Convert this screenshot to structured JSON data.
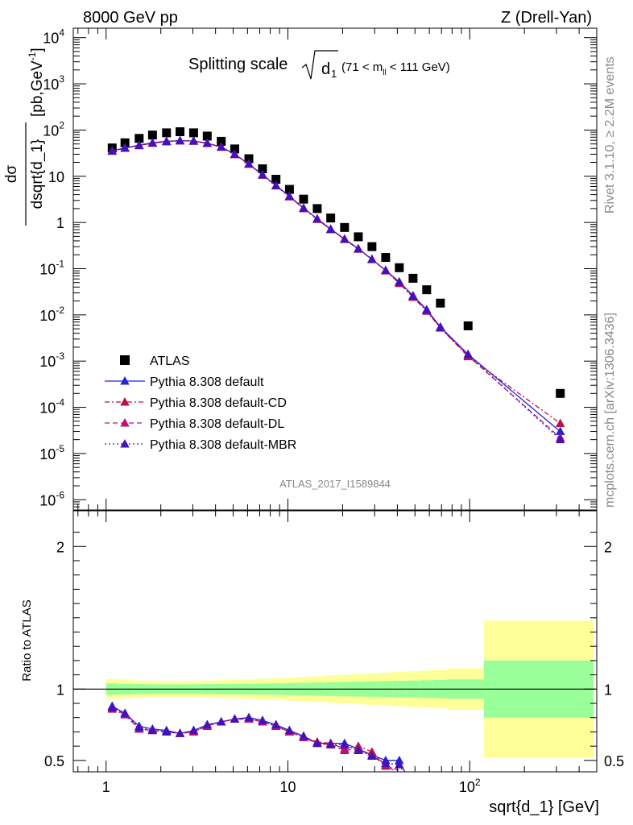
{
  "header": {
    "left": "8000 GeV pp",
    "right": "Z (Drell-Yan)"
  },
  "side_labels": {
    "rivet": "Rivet 3.1.10, ≥ 2.2M events",
    "mcplots": "mcplots.cern.ch [arXiv:1306.3436]"
  },
  "chart_data": [
    {
      "type": "scatter",
      "title": "Splitting scale",
      "title_symbol": "d",
      "title_subscript": "1",
      "title_range_prefix": "(71 < m",
      "title_range_subscript": "ll",
      "title_range_suffix": " < 111 GeV)",
      "ylabel": "dσ/dsqrt{d_1} [pb,GeV⁻¹]",
      "ylabel_num": "dσ",
      "ylabel_den": "dsqrt{d_1}",
      "ylabel_unit": "[pb,GeV",
      "ylabel_unit_sup": "-1",
      "ylabel_unit_close": "]",
      "yscale": "log",
      "xscale": "log",
      "ylim": [
        6e-07,
        16000
      ],
      "xlim": [
        0.66,
        500
      ],
      "y_tick_labels": [
        {
          "v": 1e-06,
          "base": "10",
          "exp": "-6"
        },
        {
          "v": 1e-05,
          "base": "10",
          "exp": "-5"
        },
        {
          "v": 0.0001,
          "base": "10",
          "exp": "-4"
        },
        {
          "v": 0.001,
          "base": "10",
          "exp": "-3"
        },
        {
          "v": 0.01,
          "base": "10",
          "exp": "-2"
        },
        {
          "v": 0.1,
          "base": "10",
          "exp": "-1"
        },
        {
          "v": 1,
          "base": "1",
          "exp": ""
        },
        {
          "v": 10,
          "base": "10",
          "exp": ""
        },
        {
          "v": 100,
          "base": "10",
          "exp": "2"
        },
        {
          "v": 1000,
          "base": "10",
          "exp": "3"
        },
        {
          "v": 10000,
          "base": "10",
          "exp": "4"
        }
      ],
      "watermark": "ATLAS_2017_I1589844",
      "legend_position": "bottom-left",
      "series": [
        {
          "name": "ATLAS",
          "marker": "square",
          "color": "#000000",
          "x": [
            1.08,
            1.27,
            1.52,
            1.8,
            2.15,
            2.55,
            3.03,
            3.6,
            4.3,
            5.1,
            6.1,
            7.25,
            8.6,
            10.2,
            12.2,
            14.5,
            17.2,
            20.5,
            24.4,
            29.0,
            34.5,
            41.0,
            48.8,
            58.0,
            69.0,
            98.0,
            315.0
          ],
          "y": [
            41,
            53,
            66,
            78,
            87,
            92,
            87,
            74,
            57,
            39,
            24,
            14.5,
            8.6,
            5.2,
            3.2,
            2.0,
            1.25,
            0.78,
            0.49,
            0.3,
            0.175,
            0.105,
            0.062,
            0.035,
            0.018,
            0.0058,
            0.0002
          ]
        },
        {
          "name": "Pythia 8.308 default",
          "marker": "triangle",
          "line": "solid",
          "color": "#2222dd",
          "x": [
            1.08,
            1.27,
            1.52,
            1.8,
            2.15,
            2.55,
            3.03,
            3.6,
            4.3,
            5.1,
            6.1,
            7.25,
            8.6,
            10.2,
            12.2,
            14.5,
            17.2,
            20.5,
            24.4,
            29.0,
            34.5,
            41.0,
            48.8,
            58.0,
            69.0,
            98.0,
            315.0
          ],
          "y": [
            35.5,
            41.0,
            47.0,
            53.0,
            57.0,
            59.0,
            58.0,
            52.0,
            43.0,
            30.0,
            18.5,
            10.8,
            6.3,
            3.7,
            2.05,
            1.2,
            0.72,
            0.44,
            0.27,
            0.16,
            0.092,
            0.052,
            0.026,
            0.013,
            0.0055,
            0.0014,
            3e-05
          ]
        },
        {
          "name": "Pythia 8.308 default-CD",
          "marker": "triangle",
          "line": "dashdot",
          "color": "#bb1144",
          "x": [
            1.08,
            1.27,
            1.52,
            1.8,
            2.15,
            2.55,
            3.03,
            3.6,
            4.3,
            5.1,
            6.1,
            7.25,
            8.6,
            10.2,
            12.2,
            14.5,
            17.2,
            20.5,
            24.4,
            29.0,
            34.5,
            41.0,
            48.8,
            58.0,
            69.0,
            98.0,
            315.0
          ],
          "y": [
            35.0,
            40.5,
            46.0,
            52.0,
            56.0,
            58.5,
            57.5,
            51.5,
            42.5,
            29.5,
            18.3,
            10.6,
            6.2,
            3.6,
            2.0,
            1.17,
            0.7,
            0.43,
            0.265,
            0.16,
            0.09,
            0.048,
            0.024,
            0.012,
            0.0052,
            0.00125,
            4.5e-05
          ]
        },
        {
          "name": "Pythia 8.308 default-DL",
          "marker": "triangle",
          "line": "dashed",
          "color": "#bb1177",
          "x": [
            1.08,
            1.27,
            1.52,
            1.8,
            2.15,
            2.55,
            3.03,
            3.6,
            4.3,
            5.1,
            6.1,
            7.25,
            8.6,
            10.2,
            12.2,
            14.5,
            17.2,
            20.5,
            24.4,
            29.0,
            34.5,
            41.0,
            48.8,
            58.0,
            69.0,
            98.0,
            315.0
          ],
          "y": [
            35.2,
            40.8,
            46.5,
            52.5,
            56.5,
            58.8,
            57.8,
            51.8,
            42.8,
            29.8,
            18.4,
            10.7,
            6.25,
            3.65,
            2.02,
            1.18,
            0.71,
            0.435,
            0.268,
            0.158,
            0.091,
            0.05,
            0.025,
            0.0125,
            0.0053,
            0.0013,
            2.2e-05
          ]
        },
        {
          "name": "Pythia 8.308 default-MBR",
          "marker": "triangle",
          "line": "dotted",
          "color": "#4411bb",
          "x": [
            1.08,
            1.27,
            1.52,
            1.8,
            2.15,
            2.55,
            3.03,
            3.6,
            4.3,
            5.1,
            6.1,
            7.25,
            8.6,
            10.2,
            12.2,
            14.5,
            17.2,
            20.5,
            24.4,
            29.0,
            34.5,
            41.0,
            48.8,
            58.0,
            69.0,
            98.0,
            315.0
          ],
          "y": [
            35.3,
            40.9,
            46.8,
            52.8,
            56.8,
            58.9,
            57.9,
            51.9,
            42.9,
            29.9,
            18.45,
            10.75,
            6.28,
            3.68,
            2.04,
            1.19,
            0.715,
            0.438,
            0.27,
            0.159,
            0.092,
            0.051,
            0.0255,
            0.0128,
            0.0054,
            0.0014,
            2e-05
          ]
        }
      ]
    },
    {
      "type": "line",
      "ylabel": "Ratio to ATLAS",
      "xlabel": "sqrt{d_1} [GeV]",
      "xscale": "log",
      "xlim": [
        0.66,
        500
      ],
      "ylim": [
        0.42,
        2.25
      ],
      "x_tick_labels": [
        {
          "v": 1,
          "base": "1",
          "exp": ""
        },
        {
          "v": 10,
          "base": "10",
          "exp": ""
        },
        {
          "v": 100,
          "base": "10",
          "exp": "2"
        }
      ],
      "y_tick_labels": [
        {
          "v": 0.5,
          "label": "0.5"
        },
        {
          "v": 1,
          "label": "1"
        },
        {
          "v": 2,
          "label": "2"
        }
      ],
      "bands": {
        "edges": [
          1.0,
          1.17,
          1.4,
          1.65,
          1.97,
          2.35,
          2.8,
          3.3,
          3.95,
          4.7,
          5.6,
          6.65,
          7.9,
          9.4,
          11.2,
          13.3,
          15.8,
          18.8,
          22.4,
          26.6,
          31.6,
          37.6,
          44.7,
          53.2,
          63.2,
          75.0,
          120.0,
          480.0
        ],
        "yellow": [
          0.07,
          0.065,
          0.06,
          0.058,
          0.057,
          0.056,
          0.057,
          0.06,
          0.062,
          0.065,
          0.068,
          0.072,
          0.075,
          0.08,
          0.085,
          0.09,
          0.095,
          0.1,
          0.105,
          0.11,
          0.115,
          0.12,
          0.125,
          0.13,
          0.135,
          0.145,
          0.48
        ],
        "green": [
          0.04,
          0.037,
          0.035,
          0.034,
          0.033,
          0.033,
          0.034,
          0.035,
          0.036,
          0.037,
          0.038,
          0.039,
          0.04,
          0.042,
          0.044,
          0.046,
          0.048,
          0.05,
          0.052,
          0.054,
          0.056,
          0.058,
          0.06,
          0.062,
          0.064,
          0.068,
          0.2
        ],
        "yellow_color": "#ffff99",
        "green_color": "#99ff99"
      },
      "series": [
        {
          "name": "Pythia 8.308 default",
          "color": "#2222dd",
          "x": [
            1.08,
            1.27,
            1.52,
            1.8,
            2.15,
            2.55,
            3.03,
            3.6,
            4.3,
            5.1,
            6.1,
            7.25,
            8.6,
            10.2,
            12.2,
            14.5,
            17.2,
            20.5,
            24.4,
            29.0,
            34.5,
            41.0,
            48.8
          ],
          "y": [
            0.88,
            0.83,
            0.74,
            0.72,
            0.71,
            0.69,
            0.71,
            0.75,
            0.77,
            0.79,
            0.8,
            0.78,
            0.75,
            0.71,
            0.67,
            0.62,
            0.62,
            0.62,
            0.58,
            0.54,
            0.5,
            0.5,
            0.3
          ]
        },
        {
          "name": "Pythia 8.308 default-CD",
          "color": "#bb1144",
          "x": [
            1.08,
            1.27,
            1.52,
            1.8,
            2.15,
            2.55,
            3.03,
            3.6,
            4.3,
            5.1,
            6.1,
            7.25,
            8.6,
            10.2,
            12.2,
            14.5,
            17.2,
            20.5,
            24.4,
            29.0,
            34.5,
            41.0
          ],
          "y": [
            0.86,
            0.82,
            0.72,
            0.71,
            0.7,
            0.69,
            0.7,
            0.74,
            0.77,
            0.79,
            0.79,
            0.77,
            0.74,
            0.7,
            0.66,
            0.63,
            0.62,
            0.58,
            0.6,
            0.56,
            0.46,
            0.43
          ]
        },
        {
          "name": "Pythia 8.308 default-DL",
          "color": "#bb1177",
          "x": [
            1.08,
            1.27,
            1.52,
            1.8,
            2.15,
            2.55,
            3.03,
            3.6,
            4.3,
            5.1,
            6.1,
            7.25,
            8.6,
            10.2,
            12.2,
            14.5,
            17.2,
            20.5,
            24.4,
            29.0,
            34.5,
            41.0
          ],
          "y": [
            0.87,
            0.82,
            0.72,
            0.71,
            0.7,
            0.69,
            0.7,
            0.74,
            0.77,
            0.79,
            0.79,
            0.77,
            0.74,
            0.7,
            0.66,
            0.62,
            0.61,
            0.57,
            0.58,
            0.53,
            0.47,
            0.4
          ]
        },
        {
          "name": "Pythia 8.308 default-MBR",
          "color": "#4411bb",
          "x": [
            1.08,
            1.27,
            1.52,
            1.8,
            2.15,
            2.55,
            3.03,
            3.6,
            4.3,
            5.1,
            6.1,
            7.25,
            8.6,
            10.2,
            12.2,
            14.5,
            17.2,
            20.5,
            24.4,
            29.0,
            34.5,
            41.0,
            48.8
          ],
          "y": [
            0.87,
            0.83,
            0.73,
            0.71,
            0.7,
            0.69,
            0.71,
            0.75,
            0.77,
            0.79,
            0.8,
            0.78,
            0.75,
            0.71,
            0.67,
            0.62,
            0.61,
            0.61,
            0.57,
            0.53,
            0.48,
            0.47,
            0.3
          ]
        }
      ]
    }
  ]
}
